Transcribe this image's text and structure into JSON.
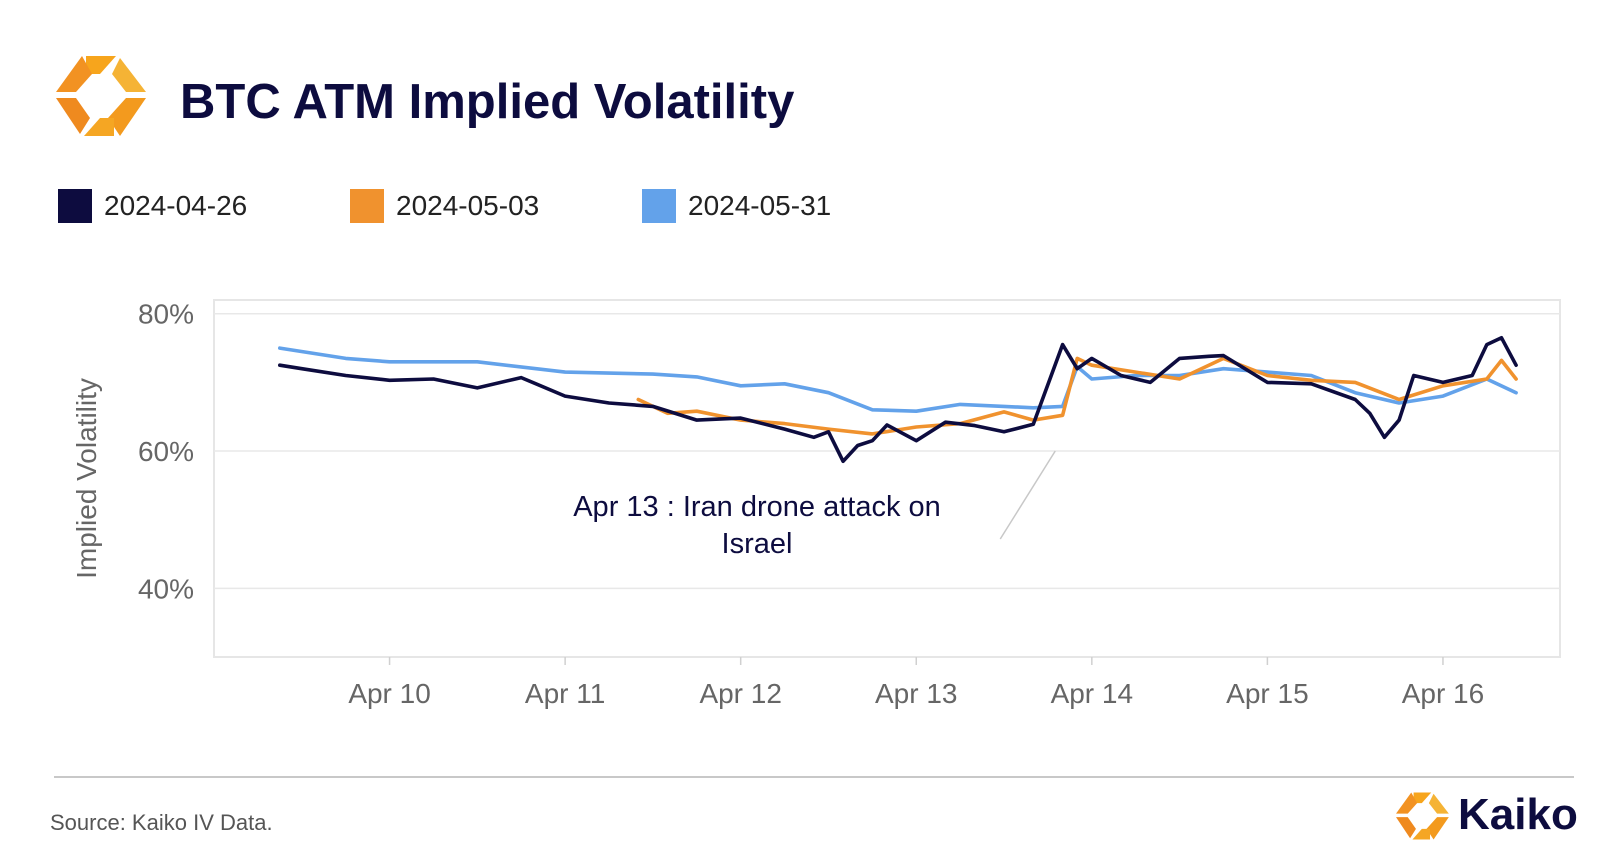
{
  "title": "BTC ATM Implied Volatility",
  "legend": [
    {
      "label": "2024-04-26",
      "color": "#0d0c3f"
    },
    {
      "label": "2024-05-03",
      "color": "#f0922e"
    },
    {
      "label": "2024-05-31",
      "color": "#63a2ea"
    }
  ],
  "footer": {
    "source": "Source: Kaiko IV Data.",
    "brand": "Kaiko"
  },
  "logo_icon": "kaiko-hexagon-logo-icon",
  "chart_data": {
    "type": "line",
    "ylabel": "Implied Volatility",
    "xlabel": "",
    "ylim": [
      30,
      82
    ],
    "yticks": [
      "40%",
      "60%",
      "80%"
    ],
    "ytick_values": [
      40,
      60,
      80
    ],
    "xticks": [
      "Apr 10",
      "Apr 11",
      "Apr 12",
      "Apr 13",
      "Apr 14",
      "Apr 15",
      "Apr 16"
    ],
    "xtick_values": [
      "2024-04-10",
      "2024-04-11",
      "2024-04-12",
      "2024-04-13",
      "2024-04-14",
      "2024-04-15",
      "2024-04-16"
    ],
    "xlim": [
      "2024-04-09 00:00",
      "2024-04-16 16:00"
    ],
    "grid": "horizontal",
    "annotation": {
      "text_line1": "Apr 13 : Iran drone attack on",
      "text_line2": "Israel",
      "x": "2024-04-13 19:00",
      "y": 60
    },
    "series": [
      {
        "name": "2024-04-26",
        "color": "#0d0c3f",
        "x": [
          "2024-04-09 09:00",
          "2024-04-09 12:00",
          "2024-04-09 18:00",
          "2024-04-10 00:00",
          "2024-04-10 06:00",
          "2024-04-10 12:00",
          "2024-04-10 18:00",
          "2024-04-11 00:00",
          "2024-04-11 06:00",
          "2024-04-11 12:00",
          "2024-04-11 18:00",
          "2024-04-12 00:00",
          "2024-04-12 06:00",
          "2024-04-12 10:00",
          "2024-04-12 12:00",
          "2024-04-12 14:00",
          "2024-04-12 16:00",
          "2024-04-12 18:00",
          "2024-04-12 20:00",
          "2024-04-13 00:00",
          "2024-04-13 04:00",
          "2024-04-13 08:00",
          "2024-04-13 12:00",
          "2024-04-13 16:00",
          "2024-04-13 20:00",
          "2024-04-13 22:00",
          "2024-04-14 00:00",
          "2024-04-14 04:00",
          "2024-04-14 08:00",
          "2024-04-14 12:00",
          "2024-04-14 16:00",
          "2024-04-14 18:00",
          "2024-04-15 00:00",
          "2024-04-15 06:00",
          "2024-04-15 12:00",
          "2024-04-15 14:00",
          "2024-04-15 16:00",
          "2024-04-15 18:00",
          "2024-04-15 20:00",
          "2024-04-16 00:00",
          "2024-04-16 04:00",
          "2024-04-16 06:00",
          "2024-04-16 08:00",
          "2024-04-16 10:00"
        ],
        "y": [
          72.5,
          72,
          71,
          70.3,
          70.5,
          69.2,
          70.7,
          68,
          67,
          66.5,
          64.5,
          64.8,
          63.2,
          62,
          62.8,
          58.5,
          60.8,
          61.5,
          63.8,
          61.5,
          64.2,
          63.7,
          62.8,
          63.9,
          75.5,
          72,
          73.5,
          71,
          70,
          73.5,
          73.8,
          73.9,
          70,
          69.8,
          67.5,
          65.5,
          62,
          64.5,
          71,
          70,
          71,
          75.5,
          76.5,
          72.5
        ]
      },
      {
        "name": "2024-05-03",
        "color": "#f0922e",
        "x": [
          "2024-04-11 10:00",
          "2024-04-11 14:00",
          "2024-04-11 18:00",
          "2024-04-12 00:00",
          "2024-04-12 06:00",
          "2024-04-12 12:00",
          "2024-04-12 18:00",
          "2024-04-13 00:00",
          "2024-04-13 06:00",
          "2024-04-13 12:00",
          "2024-04-13 16:00",
          "2024-04-13 20:00",
          "2024-04-13 22:00",
          "2024-04-14 00:00",
          "2024-04-14 06:00",
          "2024-04-14 12:00",
          "2024-04-14 18:00",
          "2024-04-15 00:00",
          "2024-04-15 06:00",
          "2024-04-15 12:00",
          "2024-04-15 18:00",
          "2024-04-16 00:00",
          "2024-04-16 06:00",
          "2024-04-16 08:00",
          "2024-04-16 10:00"
        ],
        "y": [
          67.5,
          65.5,
          65.8,
          64.5,
          64,
          63.2,
          62.5,
          63.5,
          64,
          65.7,
          64.5,
          65.2,
          73.5,
          72.5,
          71.5,
          70.5,
          73.5,
          71,
          70.3,
          70,
          67.5,
          69.5,
          70.5,
          73.2,
          70.5
        ]
      },
      {
        "name": "2024-05-31",
        "color": "#63a2ea",
        "x": [
          "2024-04-09 09:00",
          "2024-04-09 18:00",
          "2024-04-10 00:00",
          "2024-04-10 12:00",
          "2024-04-11 00:00",
          "2024-04-11 12:00",
          "2024-04-11 18:00",
          "2024-04-12 00:00",
          "2024-04-12 06:00",
          "2024-04-12 12:00",
          "2024-04-12 18:00",
          "2024-04-13 00:00",
          "2024-04-13 06:00",
          "2024-04-13 12:00",
          "2024-04-13 16:00",
          "2024-04-13 20:00",
          "2024-04-13 22:00",
          "2024-04-14 00:00",
          "2024-04-14 06:00",
          "2024-04-14 12:00",
          "2024-04-14 18:00",
          "2024-04-15 00:00",
          "2024-04-15 06:00",
          "2024-04-15 12:00",
          "2024-04-15 18:00",
          "2024-04-16 00:00",
          "2024-04-16 06:00",
          "2024-04-16 10:00"
        ],
        "y": [
          75,
          73.5,
          73,
          73,
          71.5,
          71.2,
          70.8,
          69.5,
          69.8,
          68.5,
          66,
          65.8,
          66.8,
          66.5,
          66.3,
          66.5,
          72.3,
          70.5,
          71,
          71,
          72,
          71.5,
          71,
          68.5,
          67,
          68,
          70.5,
          68.5
        ]
      }
    ]
  }
}
